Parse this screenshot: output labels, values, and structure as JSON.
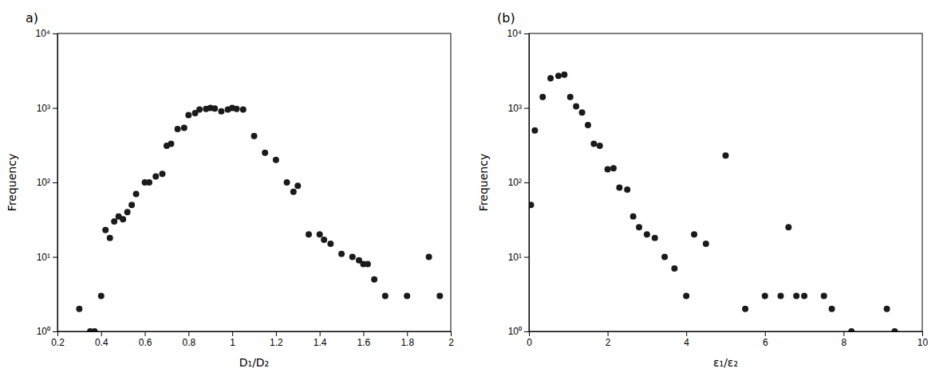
{
  "chart_data": [
    {
      "type": "scatter",
      "title": "a)",
      "x": [
        0.3,
        0.35,
        0.37,
        0.4,
        0.42,
        0.44,
        0.46,
        0.48,
        0.5,
        0.52,
        0.54,
        0.56,
        0.6,
        0.62,
        0.65,
        0.68,
        0.7,
        0.72,
        0.75,
        0.78,
        0.8,
        0.83,
        0.85,
        0.88,
        0.9,
        0.92,
        0.95,
        0.98,
        1.0,
        1.02,
        1.05,
        1.1,
        1.15,
        1.2,
        1.25,
        1.28,
        1.3,
        1.35,
        1.4,
        1.42,
        1.45,
        1.5,
        1.55,
        1.58,
        1.6,
        1.62,
        1.65,
        1.7,
        1.8,
        1.9,
        1.95
      ],
      "values": [
        2,
        1,
        1,
        3,
        23,
        18,
        30,
        35,
        32,
        40,
        50,
        70,
        100,
        100,
        120,
        130,
        310,
        330,
        520,
        540,
        800,
        850,
        950,
        970,
        1000,
        980,
        900,
        950,
        1000,
        970,
        950,
        420,
        250,
        200,
        100,
        75,
        90,
        20,
        20,
        17,
        15,
        11,
        10,
        9,
        8,
        8,
        5,
        3,
        3,
        10,
        3
      ],
      "xlabel": "D₁/D₂",
      "ylabel": "Frequency",
      "xlim": [
        0.2,
        2.0
      ],
      "ylim": [
        1,
        10000
      ],
      "xticks": [
        0.2,
        0.4,
        0.6,
        0.8,
        1,
        1.2,
        1.4,
        1.6,
        1.8,
        2
      ],
      "yticks": [
        {
          "value": 1,
          "label": "10⁰"
        },
        {
          "value": 10,
          "label": "10¹"
        },
        {
          "value": 100,
          "label": "10²"
        },
        {
          "value": 1000,
          "label": "10³"
        },
        {
          "value": 10000,
          "label": "10⁴"
        }
      ],
      "log": "y",
      "color": "#1a1a1a",
      "marker": "circle",
      "grid": false
    },
    {
      "type": "scatter",
      "title": "(b)",
      "x": [
        0.05,
        0.15,
        0.35,
        0.55,
        0.75,
        0.9,
        1.05,
        1.2,
        1.35,
        1.5,
        1.65,
        1.8,
        2.0,
        2.15,
        2.3,
        2.5,
        2.65,
        2.8,
        3.0,
        3.2,
        3.45,
        3.7,
        4.0,
        4.2,
        4.5,
        5.0,
        5.5,
        6.0,
        6.4,
        6.6,
        6.8,
        7.0,
        7.5,
        7.7,
        8.2,
        9.1,
        9.3
      ],
      "values": [
        50,
        500,
        1400,
        2500,
        2700,
        2800,
        1400,
        1050,
        870,
        590,
        330,
        310,
        150,
        155,
        85,
        80,
        35,
        25,
        20,
        18,
        10,
        7,
        3,
        20,
        15,
        230,
        2,
        3,
        3,
        25,
        3,
        3,
        3,
        2,
        1,
        2,
        1
      ],
      "xlabel": "ε₁/ε₂",
      "ylabel": "Frequency",
      "xlim": [
        0,
        10
      ],
      "ylim": [
        1,
        10000
      ],
      "xticks": [
        0,
        2,
        4,
        6,
        8,
        10
      ],
      "yticks": [
        {
          "value": 1,
          "label": "10⁰"
        },
        {
          "value": 10,
          "label": "10¹"
        },
        {
          "value": 100,
          "label": "10²"
        },
        {
          "value": 1000,
          "label": "10³"
        },
        {
          "value": 10000,
          "label": "10⁴"
        }
      ],
      "log": "y",
      "color": "#1a1a1a",
      "marker": "circle",
      "grid": false
    }
  ]
}
